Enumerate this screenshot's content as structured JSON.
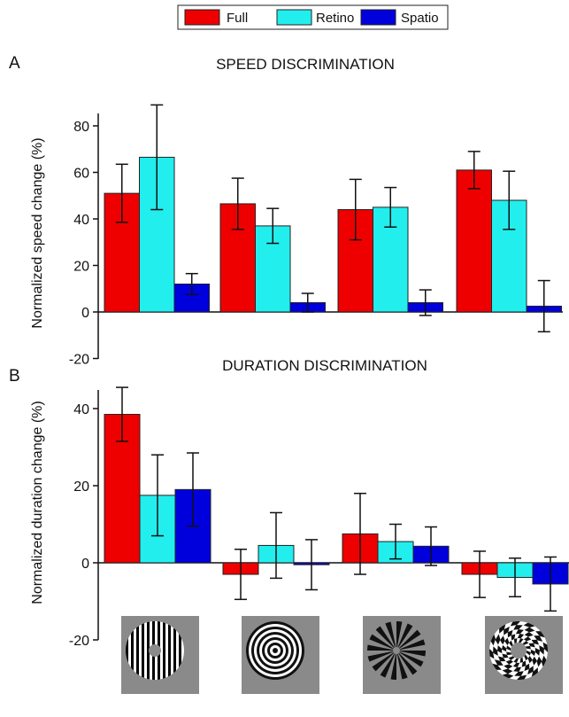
{
  "legend": {
    "items": [
      {
        "label": "Full",
        "color": "#ee0000"
      },
      {
        "label": "Retino",
        "color": "#22eeee"
      },
      {
        "label": "Spatio",
        "color": "#0000dd"
      }
    ]
  },
  "chart_data": [
    {
      "type": "bar",
      "panel": "A",
      "title": "SPEED DISCRIMINATION",
      "ylabel": "Normalized speed change (%)",
      "ylim": [
        -20,
        90
      ],
      "yticks": [
        -20,
        0,
        20,
        40,
        60,
        80
      ],
      "categories": [
        "",
        "",
        "",
        ""
      ],
      "series": [
        {
          "name": "Full",
          "color": "#ee0000",
          "values": [
            51,
            46.5,
            44,
            61
          ],
          "errors": [
            12.5,
            11,
            13,
            8
          ]
        },
        {
          "name": "Retino",
          "color": "#22eeee",
          "values": [
            66.5,
            37,
            45,
            48
          ],
          "errors": [
            22.5,
            7.5,
            8.5,
            12.5
          ]
        },
        {
          "name": "Spatio",
          "color": "#0000dd",
          "values": [
            12,
            4,
            4,
            2.5
          ],
          "errors": [
            4.5,
            4,
            5.5,
            11
          ]
        }
      ]
    },
    {
      "type": "bar",
      "panel": "B",
      "title": "DURATION  DISCRIMINATION",
      "ylabel": "Normalized duration change (%)",
      "ylim": [
        -20,
        46
      ],
      "yticks": [
        -20,
        0,
        20,
        40
      ],
      "categories": [
        "",
        "",
        "",
        ""
      ],
      "series": [
        {
          "name": "Full",
          "color": "#ee0000",
          "values": [
            38.5,
            -3,
            7.5,
            -3
          ],
          "errors": [
            7,
            6.5,
            10.5,
            6
          ]
        },
        {
          "name": "Retino",
          "color": "#22eeee",
          "values": [
            17.5,
            4.5,
            5.5,
            -3.8
          ],
          "errors": [
            10.5,
            8.5,
            4.5,
            5
          ]
        },
        {
          "name": "Spatio",
          "color": "#0000dd",
          "values": [
            19,
            -0.5,
            4.3,
            -5.5
          ],
          "errors": [
            9.5,
            6.5,
            5,
            7
          ]
        }
      ]
    }
  ],
  "stimuli": [
    {
      "icon": "vertical-grating-icon"
    },
    {
      "icon": "concentric-rings-icon"
    },
    {
      "icon": "radial-spokes-icon"
    },
    {
      "icon": "spiral-checkerboard-icon"
    }
  ]
}
